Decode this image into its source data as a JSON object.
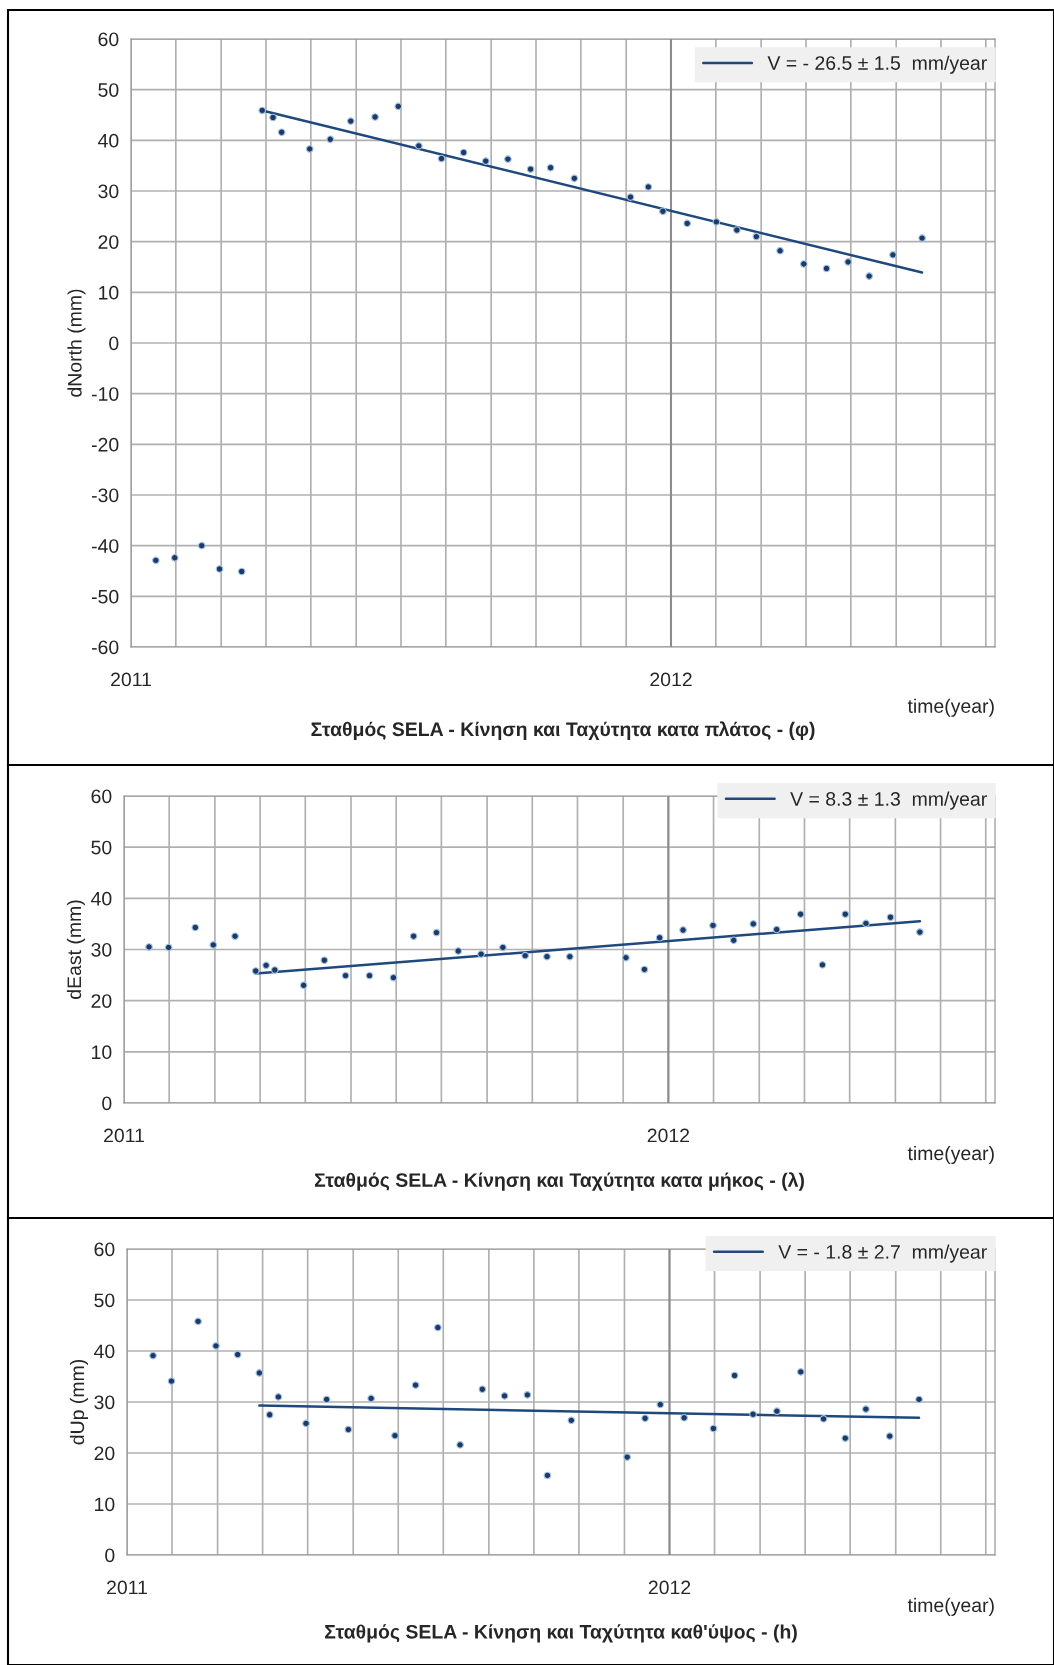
{
  "chart_data": [
    {
      "type": "scatter",
      "title": "Σταθμός SELA - Κίνηση και Ταχύτητα κατα πλάτος - (φ)",
      "xlabel": "time(year)",
      "ylabel": "dNorth (mm)",
      "xlim": [
        2011,
        2012.6
      ],
      "xticks": [
        2011,
        {
          "value": 2011.083,
          "label": null
        },
        {
          "value": 2011.167,
          "label": null
        },
        {
          "value": 2011.25,
          "label": null
        },
        {
          "value": 2011.333,
          "label": null
        },
        {
          "value": 2011.417,
          "label": null
        },
        {
          "value": 2011.5,
          "label": null
        },
        {
          "value": 2011.583,
          "label": null
        },
        {
          "value": 2011.667,
          "label": null
        },
        {
          "value": 2011.75,
          "label": null
        },
        {
          "value": 2011.833,
          "label": null
        },
        {
          "value": 2011.917,
          "label": null
        },
        2012,
        {
          "value": 2012.083,
          "label": null
        },
        {
          "value": 2012.167,
          "label": null
        },
        {
          "value": 2012.25,
          "label": null
        },
        {
          "value": 2012.333,
          "label": null
        },
        {
          "value": 2012.417,
          "label": null
        },
        {
          "value": 2012.5,
          "label": null
        },
        {
          "value": 2012.583,
          "label": null
        }
      ],
      "ylim": [
        -60,
        60
      ],
      "yticks": [
        -60,
        -50,
        -40,
        -30,
        -20,
        -10,
        0,
        10,
        20,
        30,
        40,
        50,
        60
      ],
      "grid": true,
      "legend": "top right",
      "ref_lines": [
        {
          "axis": "x",
          "value": 2012,
          "color": "#8c8c8c"
        }
      ],
      "series": [
        {
          "marker": "circle",
          "color": "#1f3864",
          "x": [
            2011.046,
            2011.081,
            2011.131,
            2011.164,
            2011.205,
            2011.243,
            2011.263,
            2011.279,
            2011.331,
            2011.369,
            2011.407,
            2011.452,
            2011.495,
            2011.533,
            2011.575,
            2011.616,
            2011.657,
            2011.698,
            2011.74,
            2011.777,
            2011.821,
            2011.925,
            2011.958,
            2011.985,
            2012.03,
            2012.084,
            2012.122,
            2012.158,
            2012.202,
            2012.246,
            2012.288,
            2012.328,
            2012.367,
            2012.411,
            2012.465
          ],
          "values": [
            -42.9,
            -42.4,
            -40.0,
            -44.6,
            -45.1,
            45.9,
            44.5,
            41.6,
            38.3,
            40.2,
            43.8,
            44.6,
            46.7,
            38.9,
            36.4,
            37.6,
            35.9,
            36.3,
            34.3,
            34.6,
            32.5,
            28.8,
            30.8,
            26.0,
            23.6,
            23.9,
            22.3,
            21.0,
            18.2,
            15.6,
            14.7,
            16.0,
            13.2,
            17.4,
            20.7
          ]
        },
        {
          "type": "line",
          "marker": "none",
          "name": "V = - 26.5 ± 1.5  mm/year",
          "color": "#1f497d",
          "x": [
            2011.243,
            2012.465
          ],
          "values": [
            45.9,
            13.9
          ]
        }
      ]
    },
    {
      "type": "scatter",
      "title": "Σταθμός SELA - Κίνηση και Ταχύτητα κατα μήκος - (λ)",
      "xlabel": "time(year)",
      "ylabel": "dEast (mm)",
      "xlim": [
        2011,
        2012.6
      ],
      "xticks": [
        2011,
        {
          "value": 2011.083,
          "label": null
        },
        {
          "value": 2011.167,
          "label": null
        },
        {
          "value": 2011.25,
          "label": null
        },
        {
          "value": 2011.333,
          "label": null
        },
        {
          "value": 2011.417,
          "label": null
        },
        {
          "value": 2011.5,
          "label": null
        },
        {
          "value": 2011.583,
          "label": null
        },
        {
          "value": 2011.667,
          "label": null
        },
        {
          "value": 2011.75,
          "label": null
        },
        {
          "value": 2011.833,
          "label": null
        },
        {
          "value": 2011.917,
          "label": null
        },
        2012,
        {
          "value": 2012.083,
          "label": null
        },
        {
          "value": 2012.167,
          "label": null
        },
        {
          "value": 2012.25,
          "label": null
        },
        {
          "value": 2012.333,
          "label": null
        },
        {
          "value": 2012.417,
          "label": null
        },
        {
          "value": 2012.5,
          "label": null
        },
        {
          "value": 2012.583,
          "label": null
        }
      ],
      "ylim": [
        0,
        60
      ],
      "yticks": [
        0,
        10,
        20,
        30,
        40,
        50,
        60
      ],
      "grid": true,
      "legend": "top right",
      "ref_lines": [
        {
          "axis": "x",
          "value": 2012,
          "color": "#8c8c8c"
        }
      ],
      "series": [
        {
          "marker": "circle",
          "color": "#1f3864",
          "x": [
            2011.046,
            2011.082,
            2011.131,
            2011.164,
            2011.204,
            2011.242,
            2011.261,
            2011.277,
            2011.33,
            2011.368,
            2011.407,
            2011.451,
            2011.495,
            2011.532,
            2011.574,
            2011.614,
            2011.656,
            2011.696,
            2011.737,
            2011.777,
            2011.819,
            2011.922,
            2011.956,
            2011.984,
            2012.027,
            2012.082,
            2012.12,
            2012.156,
            2012.199,
            2012.243,
            2012.283,
            2012.325,
            2012.363,
            2012.408,
            2012.462
          ],
          "values": [
            30.5,
            30.4,
            34.3,
            30.9,
            32.6,
            25.8,
            26.9,
            26.0,
            23.0,
            27.9,
            24.9,
            24.9,
            24.5,
            32.6,
            33.3,
            29.7,
            29.1,
            30.4,
            28.8,
            28.6,
            28.6,
            28.4,
            26.1,
            32.3,
            33.8,
            34.7,
            31.8,
            35.0,
            33.9,
            36.9,
            27.0,
            36.9,
            35.1,
            36.3,
            33.4
          ]
        },
        {
          "type": "line",
          "marker": "none",
          "name": "V = 8.3 ± 1.3  mm/year",
          "color": "#1f497d",
          "x": [
            2011.242,
            2012.462
          ],
          "values": [
            25.3,
            35.5
          ]
        }
      ]
    },
    {
      "type": "scatter",
      "title": "Σταθμός SELA - Κίνηση και Ταχύτητα καθ'ύψος - (h)",
      "xlabel": "time(year)",
      "ylabel": "dUp (mm)",
      "xlim": [
        2011,
        2012.6
      ],
      "xticks": [
        2011,
        {
          "value": 2011.083,
          "label": null
        },
        {
          "value": 2011.167,
          "label": null
        },
        {
          "value": 2011.25,
          "label": null
        },
        {
          "value": 2011.333,
          "label": null
        },
        {
          "value": 2011.417,
          "label": null
        },
        {
          "value": 2011.5,
          "label": null
        },
        {
          "value": 2011.583,
          "label": null
        },
        {
          "value": 2011.667,
          "label": null
        },
        {
          "value": 2011.75,
          "label": null
        },
        {
          "value": 2011.833,
          "label": null
        },
        {
          "value": 2011.917,
          "label": null
        },
        2012,
        {
          "value": 2012.083,
          "label": null
        },
        {
          "value": 2012.167,
          "label": null
        },
        {
          "value": 2012.25,
          "label": null
        },
        {
          "value": 2012.333,
          "label": null
        },
        {
          "value": 2012.417,
          "label": null
        },
        {
          "value": 2012.5,
          "label": null
        },
        {
          "value": 2012.583,
          "label": null
        }
      ],
      "ylim": [
        0,
        60
      ],
      "yticks": [
        0,
        10,
        20,
        30,
        40,
        50,
        60
      ],
      "grid": true,
      "legend": "top right",
      "ref_lines": [
        {
          "axis": "x",
          "value": 2012,
          "color": "#8c8c8c"
        }
      ],
      "series": [
        {
          "marker": "circle",
          "color": "#1f3864",
          "x": [
            2011.048,
            2011.082,
            2011.131,
            2011.164,
            2011.204,
            2011.244,
            2011.263,
            2011.279,
            2011.33,
            2011.368,
            2011.408,
            2011.45,
            2011.494,
            2011.532,
            2011.573,
            2011.614,
            2011.655,
            2011.696,
            2011.738,
            2011.775,
            2011.819,
            2011.922,
            2011.955,
            2011.983,
            2012.027,
            2012.081,
            2012.12,
            2012.154,
            2012.198,
            2012.242,
            2012.284,
            2012.324,
            2012.362,
            2012.406,
            2012.46
          ],
          "values": [
            39.1,
            34.1,
            45.8,
            41.0,
            39.3,
            35.7,
            27.5,
            31.0,
            25.8,
            30.5,
            24.6,
            30.7,
            23.4,
            33.3,
            44.6,
            21.6,
            32.5,
            31.2,
            31.4,
            15.6,
            26.4,
            19.2,
            26.8,
            29.5,
            26.9,
            24.8,
            35.2,
            27.6,
            28.2,
            35.9,
            26.7,
            22.9,
            28.6,
            23.3,
            30.5
          ]
        },
        {
          "type": "line",
          "marker": "none",
          "name": "V = - 1.8 ± 2.7  mm/year",
          "color": "#1f497d",
          "x": [
            2011.244,
            2012.46
          ],
          "values": [
            29.3,
            26.9
          ]
        }
      ]
    }
  ]
}
